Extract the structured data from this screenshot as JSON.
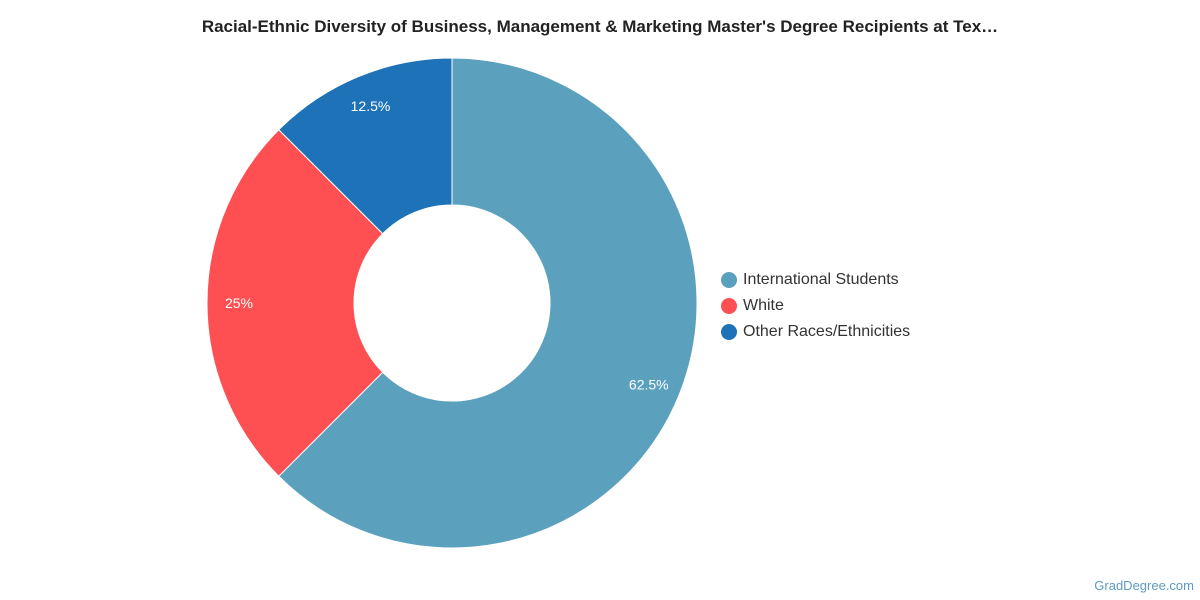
{
  "chart_data": {
    "type": "pie",
    "variant": "donut",
    "title": "Racial-Ethnic Diversity of Business, Management & Marketing Master's Degree Recipients at Tex…",
    "slices": [
      {
        "name": "International Students",
        "value": 62.5,
        "label": "62.5%",
        "color": "#5ba1be"
      },
      {
        "name": "White",
        "value": 25,
        "label": "25%",
        "color": "#fe5052"
      },
      {
        "name": "Other Races/Ethnicities",
        "value": 12.5,
        "label": "12.5%",
        "color": "#1d72b8"
      }
    ],
    "legend_position": "right"
  },
  "footer": {
    "credit": "GradDegree.com"
  }
}
